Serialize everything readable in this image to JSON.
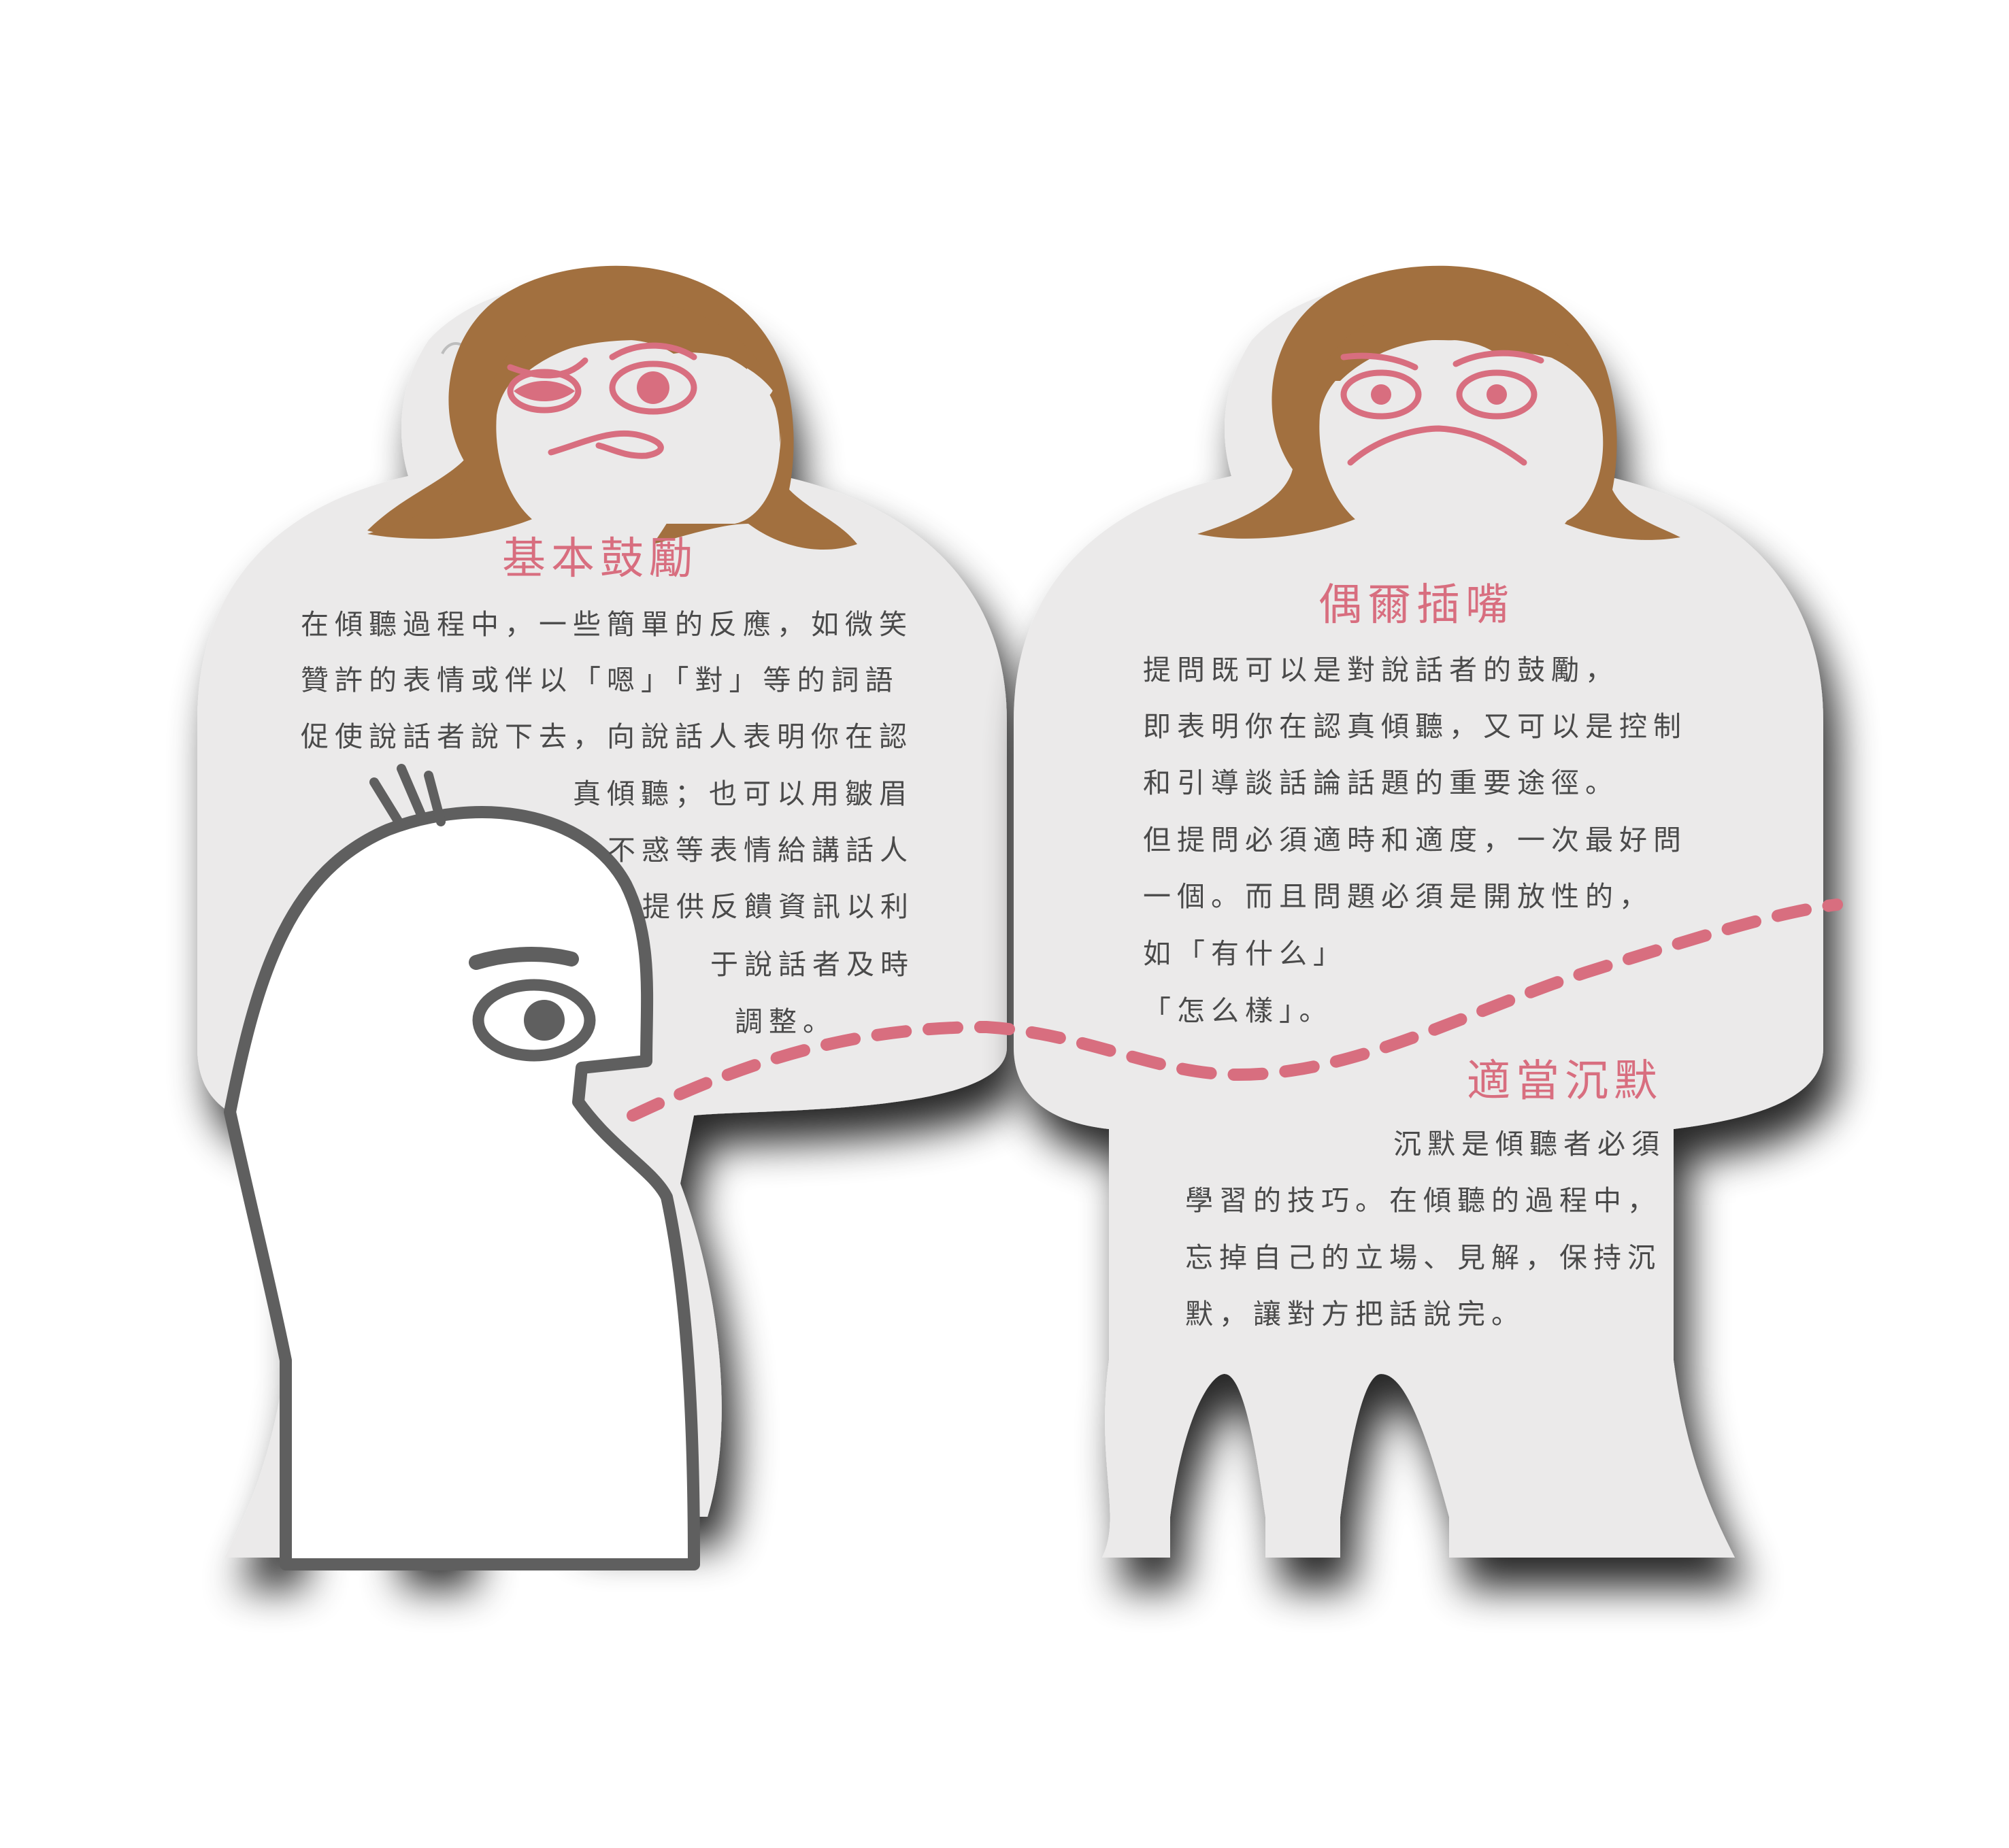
{
  "colors": {
    "pink": "#d86e7f",
    "hair": "#a2703f",
    "body": "#ebeaea",
    "outline": "#5f5f5f",
    "text": "#4a4a4a"
  },
  "left_panel": {
    "title": "基本鼓勵",
    "lines": [
      "在傾聽過程中，一些簡單的反應，如微笑",
      "贊許的表情或伴以「嗯」「對」等的詞語",
      "促使說話者說下去，向說話人表明你在認",
      "真傾聽；也可以用皺眉",
      "不惑等表情給講話人",
      "提供反饋資訊以利",
      "于說話者及時",
      "調整。"
    ]
  },
  "right_panel": {
    "title": "偶爾插嘴",
    "lines": [
      "提問既可以是對說話者的鼓勵，",
      "即表明你在認真傾聽，又可以是控制",
      "和引導談話論話題的重要途徑。",
      "但提問必須適時和適度，一次最好問",
      "一個。而且問題必須是開放性的，",
      "如「有什么」",
      "「怎么樣」。"
    ]
  },
  "bottom_panel": {
    "title": "適當沉默",
    "lines": [
      "沉默是傾聽者必須",
      "學習的技巧。在傾聽的過程中，",
      "忘掉自己的立場、見解，保持沉",
      "默，讓對方把話說完。"
    ]
  }
}
